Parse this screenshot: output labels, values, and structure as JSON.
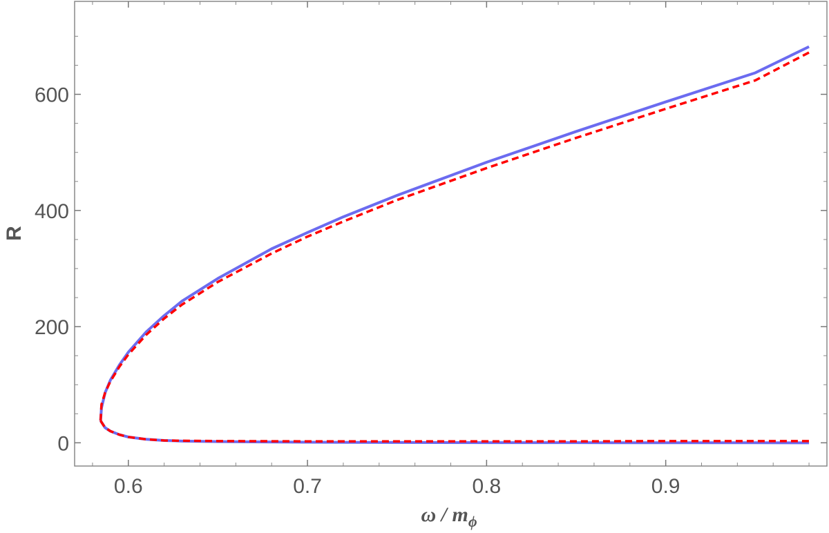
{
  "chart_data": {
    "type": "line",
    "title": "",
    "xlabel": "ω / m",
    "xlabel_subscript": "ϕ",
    "ylabel": "R",
    "xlim": [
      0.57,
      0.99
    ],
    "ylim": [
      -40,
      760
    ],
    "xticks": [
      0.6,
      0.7,
      0.8,
      0.9
    ],
    "xtick_labels": [
      "0.6",
      "0.7",
      "0.8",
      "0.9"
    ],
    "yticks": [
      0,
      200,
      400,
      600
    ],
    "ytick_labels": [
      "0",
      "200",
      "400",
      "600"
    ],
    "grid": false,
    "legend": "none",
    "series": [
      {
        "color": "#6b6bf0",
        "style": "solid",
        "branches": [
          {
            "x": [
              0.5845,
              0.585,
              0.587,
              0.59,
              0.595,
              0.6,
              0.61,
              0.62,
              0.63,
              0.65,
              0.68,
              0.7,
              0.72,
              0.75,
              0.8,
              0.85,
              0.9,
              0.95,
              0.98
            ],
            "y": [
              38,
              60,
              86,
              108,
              134,
              156,
              191,
              219,
              244,
              283,
              334,
              362,
              389,
              426,
              483,
              536,
              587,
              637,
              682
            ]
          },
          {
            "x": [
              0.5845,
              0.587,
              0.59,
              0.595,
              0.6,
              0.605,
              0.61,
              0.62,
              0.63,
              0.65,
              0.7,
              0.75,
              0.8,
              0.85,
              0.9,
              0.95,
              0.98
            ],
            "y": [
              38,
              26,
              20,
              14,
              10,
              8,
              6,
              4,
              3,
              2,
              1,
              0.5,
              0.3,
              0.2,
              0.1,
              0.1,
              0
            ]
          }
        ]
      },
      {
        "color": "#ff0000",
        "style": "dashed",
        "branches": [
          {
            "x": [
              0.5845,
              0.585,
              0.587,
              0.59,
              0.595,
              0.6,
              0.61,
              0.62,
              0.63,
              0.65,
              0.68,
              0.7,
              0.72,
              0.75,
              0.8,
              0.85,
              0.9,
              0.95,
              0.98
            ],
            "y": [
              38,
              66,
              86,
              106,
              131,
              152,
              186,
              214,
              238,
              277,
              326,
              355,
              381,
              418,
              473,
              525,
              575,
              624,
              672
            ]
          },
          {
            "x": [
              0.5845,
              0.587,
              0.59,
              0.595,
              0.6,
              0.605,
              0.61,
              0.62,
              0.63,
              0.65,
              0.7,
              0.75,
              0.8,
              0.85,
              0.9,
              0.95,
              0.98
            ],
            "y": [
              38,
              26,
              20,
              14,
              10,
              8,
              6,
              4,
              3.5,
              3,
              2.5,
              2.5,
              2.5,
              2.5,
              3,
              3,
              3
            ]
          }
        ]
      }
    ]
  }
}
